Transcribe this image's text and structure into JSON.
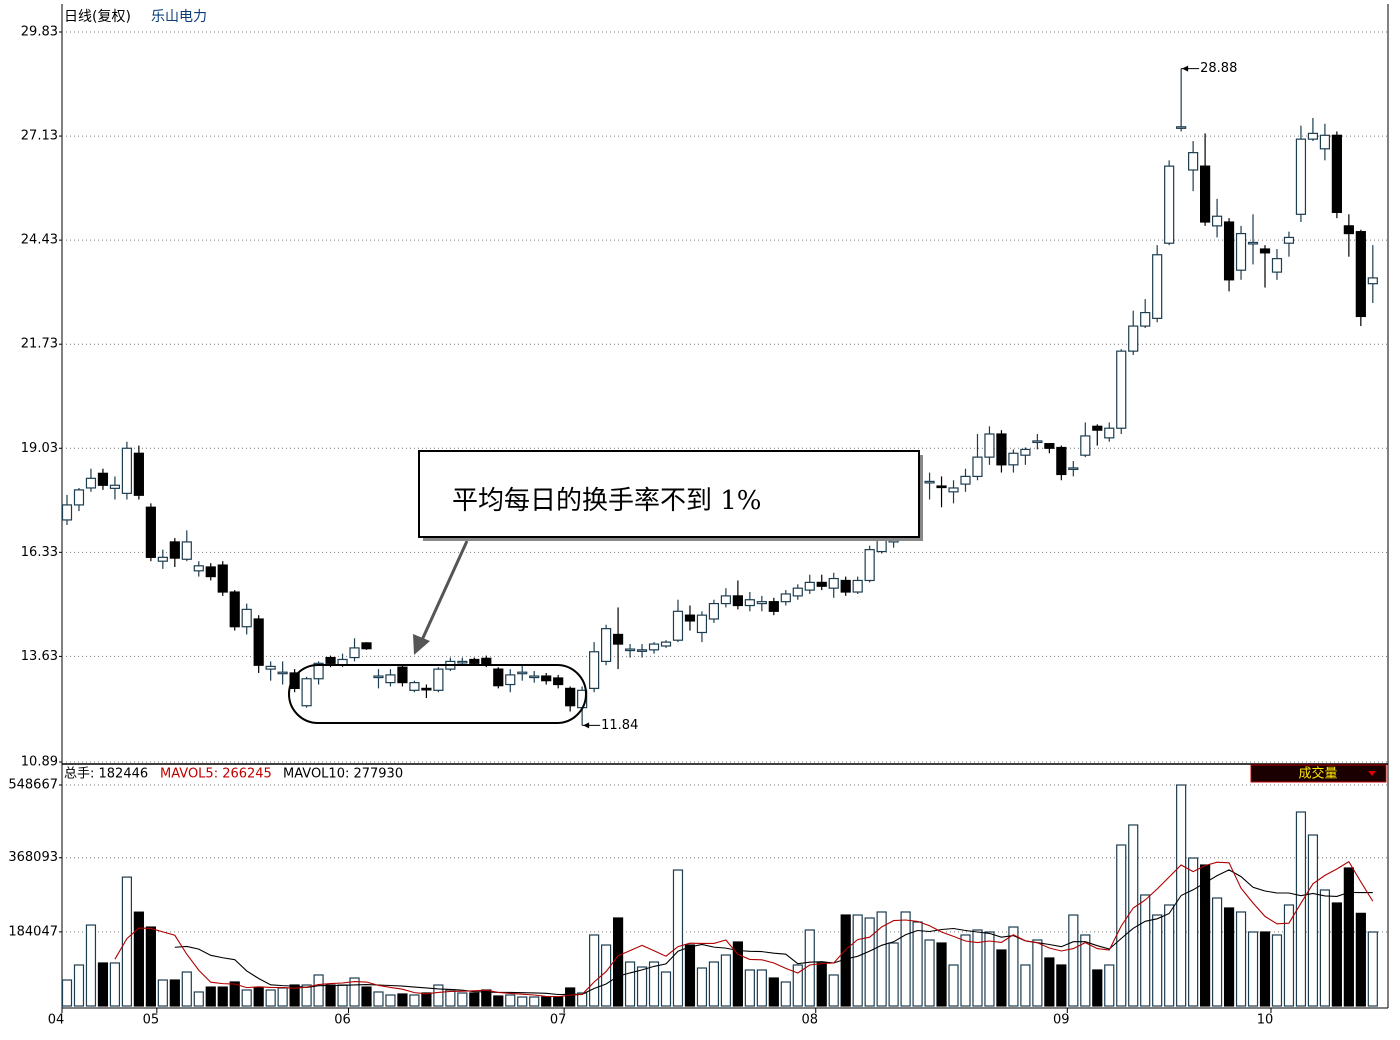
{
  "chart_data": [
    {
      "type": "candlestick",
      "title": "日线(复权)",
      "subtitle": "乐山电力",
      "open": [
        17.17,
        17.56,
        18.0,
        18.38,
        17.99,
        17.86,
        18.9,
        17.5,
        16.1,
        16.6,
        16.15,
        15.85,
        15.95,
        16.0,
        15.3,
        14.4,
        14.6,
        13.3,
        13.2,
        13.2,
        12.35,
        13.05,
        13.6,
        13.4,
        13.6,
        13.98,
        13.1,
        12.95,
        13.35,
        12.75,
        12.8,
        12.75,
        13.3,
        13.48,
        13.55,
        13.58,
        13.3,
        12.9,
        13.2,
        13.1,
        13.12,
        13.07,
        12.8,
        12.3,
        12.8,
        13.5,
        14.2,
        13.8,
        13.78,
        13.8,
        13.9,
        14.05,
        14.7,
        14.25,
        14.6,
        15.0,
        15.2,
        14.95,
        15.0,
        15.05,
        15.05,
        15.2,
        15.35,
        15.55,
        15.4,
        15.6,
        15.3,
        15.6,
        16.35,
        16.6,
        17.2,
        18.1,
        18.15,
        18.05,
        17.9,
        18.1,
        18.3,
        18.8,
        19.4,
        18.6,
        18.85,
        19.2,
        19.15,
        19.05,
        18.5,
        18.85,
        19.6,
        19.3,
        19.55,
        21.55,
        22.2,
        22.4,
        24.35,
        27.35,
        26.25,
        26.35,
        24.8,
        24.9,
        23.65,
        24.35,
        24.2,
        23.6,
        24.35,
        25.1,
        27.05,
        26.8,
        27.15,
        24.8,
        24.65,
        23.3
      ],
      "high": [
        17.82,
        18.0,
        18.5,
        18.5,
        18.3,
        19.2,
        19.1,
        17.6,
        16.4,
        16.7,
        16.9,
        16.1,
        16.05,
        16.1,
        15.35,
        15.0,
        14.7,
        13.5,
        13.5,
        13.3,
        13.1,
        13.5,
        13.65,
        13.7,
        14.1,
        14.0,
        13.3,
        13.3,
        13.4,
        13.0,
        12.9,
        13.35,
        13.6,
        13.6,
        13.6,
        13.65,
        13.35,
        13.3,
        13.4,
        13.25,
        13.2,
        13.15,
        12.85,
        12.85,
        14.0,
        14.45,
        14.9,
        13.95,
        13.95,
        14.0,
        14.05,
        15.1,
        14.95,
        14.8,
        15.1,
        15.4,
        15.6,
        15.3,
        15.2,
        15.15,
        15.35,
        15.5,
        15.75,
        15.75,
        15.8,
        15.7,
        15.7,
        16.5,
        16.85,
        17.0,
        18.35,
        18.3,
        18.4,
        18.3,
        18.2,
        18.5,
        19.4,
        19.6,
        19.5,
        19.0,
        19.05,
        19.4,
        19.15,
        19.1,
        18.7,
        19.7,
        19.65,
        19.7,
        21.6,
        22.6,
        22.9,
        24.3,
        26.5,
        28.88,
        27.0,
        27.2,
        25.5,
        25.0,
        24.8,
        25.1,
        24.3,
        24.2,
        24.65,
        27.4,
        27.6,
        27.45,
        27.25,
        25.1,
        24.7,
        24.3
      ],
      "low": [
        17.04,
        17.4,
        17.9,
        17.95,
        17.7,
        17.7,
        17.7,
        16.1,
        15.9,
        15.95,
        16.1,
        15.7,
        15.6,
        15.2,
        14.3,
        14.2,
        13.2,
        13.0,
        12.9,
        12.7,
        12.3,
        12.9,
        13.35,
        13.35,
        13.5,
        13.8,
        12.8,
        12.85,
        12.85,
        12.7,
        12.55,
        12.7,
        13.25,
        13.4,
        13.4,
        13.35,
        12.8,
        12.7,
        13.0,
        12.95,
        12.9,
        12.8,
        12.2,
        11.84,
        12.7,
        13.4,
        13.3,
        13.6,
        13.6,
        13.7,
        13.85,
        14.0,
        14.3,
        14.0,
        14.5,
        14.9,
        14.85,
        14.8,
        14.8,
        14.7,
        14.95,
        15.1,
        15.25,
        15.35,
        15.15,
        15.2,
        15.25,
        15.55,
        16.3,
        16.45,
        17.15,
        17.8,
        17.7,
        17.5,
        17.6,
        17.9,
        18.2,
        18.6,
        18.4,
        18.4,
        18.6,
        19.0,
        18.9,
        18.2,
        18.3,
        18.8,
        19.1,
        19.2,
        19.4,
        21.45,
        22.15,
        22.3,
        24.3,
        27.25,
        25.7,
        24.8,
        24.5,
        23.1,
        23.4,
        23.8,
        23.2,
        23.4,
        24.0,
        24.9,
        27.0,
        26.5,
        25.0,
        24.0,
        22.2,
        22.8
      ],
      "close": [
        17.56,
        17.95,
        18.25,
        18.07,
        18.07,
        19.03,
        17.81,
        16.2,
        16.2,
        16.18,
        16.6,
        15.98,
        15.7,
        15.3,
        14.4,
        14.85,
        13.4,
        13.37,
        13.22,
        12.8,
        13.05,
        13.45,
        13.45,
        13.55,
        13.85,
        13.83,
        13.12,
        13.15,
        12.95,
        12.95,
        12.78,
        13.3,
        13.5,
        13.5,
        13.45,
        13.42,
        12.87,
        13.15,
        13.22,
        13.12,
        13.0,
        12.9,
        12.35,
        12.75,
        13.75,
        14.35,
        13.95,
        13.82,
        13.8,
        13.95,
        14.0,
        14.8,
        14.55,
        14.7,
        15.0,
        15.2,
        14.95,
        15.1,
        15.05,
        14.8,
        15.25,
        15.4,
        15.55,
        15.45,
        15.65,
        15.3,
        15.6,
        16.4,
        16.7,
        16.9,
        18.1,
        18.2,
        18.17,
        18.03,
        18.0,
        18.3,
        18.8,
        19.4,
        18.6,
        18.9,
        19.0,
        19.22,
        19.03,
        18.35,
        18.52,
        19.35,
        19.5,
        19.55,
        21.55,
        22.2,
        22.55,
        24.05,
        26.35,
        27.37,
        26.7,
        24.9,
        25.05,
        23.4,
        24.6,
        24.37,
        24.1,
        23.95,
        24.5,
        27.05,
        27.2,
        27.15,
        25.15,
        24.6,
        22.45,
        23.45
      ],
      "ylim": [
        10.89,
        29.83
      ],
      "yticks": [
        29.83,
        27.13,
        24.43,
        21.73,
        19.03,
        16.33,
        13.63,
        10.89
      ],
      "grid": true,
      "max_label": 28.88,
      "min_label": 11.84,
      "annotation": "平均每日的换手率不到 1%",
      "up_color": "#ffffff",
      "down_color": "#000000",
      "outline_color": "#1d3d50"
    },
    {
      "type": "bar",
      "total_label": "总手: 182446",
      "ma5_label": "MAVOL5: 266245",
      "ma10_label": "MAVOL10: 277930",
      "button": "成交量",
      "categories": [
        "04",
        null,
        null,
        null,
        null,
        null,
        null,
        null,
        "05",
        null,
        null,
        null,
        null,
        null,
        null,
        null,
        null,
        null,
        null,
        null,
        null,
        null,
        null,
        null,
        "06",
        null,
        null,
        null,
        null,
        null,
        null,
        null,
        null,
        null,
        null,
        null,
        null,
        null,
        null,
        null,
        null,
        null,
        "07",
        null,
        null,
        null,
        null,
        null,
        null,
        null,
        null,
        null,
        null,
        null,
        null,
        null,
        null,
        null,
        null,
        null,
        null,
        null,
        null,
        "08",
        null,
        null,
        null,
        null,
        null,
        null,
        null,
        null,
        null,
        null,
        null,
        null,
        null,
        null,
        null,
        null,
        null,
        null,
        null,
        null,
        "09",
        null,
        null,
        null,
        null,
        null,
        null,
        null,
        null,
        null,
        null,
        null,
        null,
        null,
        null,
        null,
        null,
        "10",
        null,
        null,
        null,
        null,
        null,
        null,
        null,
        null
      ],
      "values": [
        64500,
        101800,
        201000,
        106800,
        106800,
        320000,
        233000,
        196000,
        64500,
        64500,
        84400,
        34800,
        47000,
        47000,
        59600,
        39700,
        44700,
        39700,
        44700,
        52100,
        52100,
        77000,
        52100,
        52100,
        69500,
        47000,
        34800,
        27300,
        29800,
        27300,
        32300,
        52100,
        39700,
        32300,
        32300,
        39700,
        24800,
        27300,
        22300,
        22300,
        22300,
        22300,
        44700,
        32300,
        176300,
        151400,
        218500,
        109200,
        96800,
        109200,
        84400,
        337600,
        151400,
        94300,
        109200,
        126600,
        158900,
        89400,
        89400,
        69500,
        59600,
        101800,
        188700,
        106800,
        77000,
        225900,
        225900,
        218500,
        233400,
        156400,
        233400,
        208500,
        163900,
        156400,
        101800,
        176300,
        188700,
        183700,
        139000,
        196100,
        101800,
        163900,
        119200,
        101800,
        225900,
        176300,
        89400,
        101800,
        399700,
        449400,
        275600,
        225900,
        250800,
        548667,
        367400,
        350000,
        268100,
        243300,
        233400,
        183700,
        183700,
        176300,
        250800,
        481600,
        424500,
        288000,
        255700,
        342600,
        230000,
        183700
      ],
      "ylim": [
        0,
        548667
      ],
      "yticks": [
        184047,
        368093,
        548667
      ],
      "grid": true,
      "ma5_color": "#b00000",
      "ma10_color": "#000000"
    }
  ]
}
